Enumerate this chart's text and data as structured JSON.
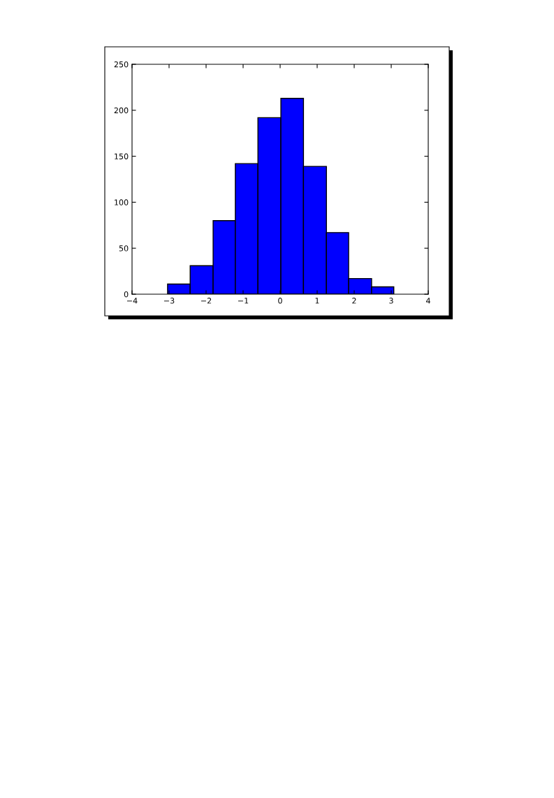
{
  "chart_data": {
    "type": "histogram",
    "bins": [
      -3.04,
      -2.43,
      -1.81,
      -1.21,
      -0.6,
      0.02,
      0.63,
      1.25,
      1.85,
      2.47,
      3.07
    ],
    "values": [
      11,
      31,
      80,
      142,
      192,
      213,
      139,
      67,
      17,
      8
    ],
    "color": "#0000ff",
    "xlim": [
      -4,
      4
    ],
    "xticks": [
      {
        "value": -4,
        "label": "−4"
      },
      {
        "value": -3,
        "label": "−3"
      },
      {
        "value": -2,
        "label": "−2"
      },
      {
        "value": -1,
        "label": "−1"
      },
      0,
      1,
      2,
      3,
      4
    ],
    "ylim": [
      0,
      250
    ],
    "yticks": [
      0,
      50,
      100,
      150,
      200,
      250
    ],
    "grid": false
  }
}
